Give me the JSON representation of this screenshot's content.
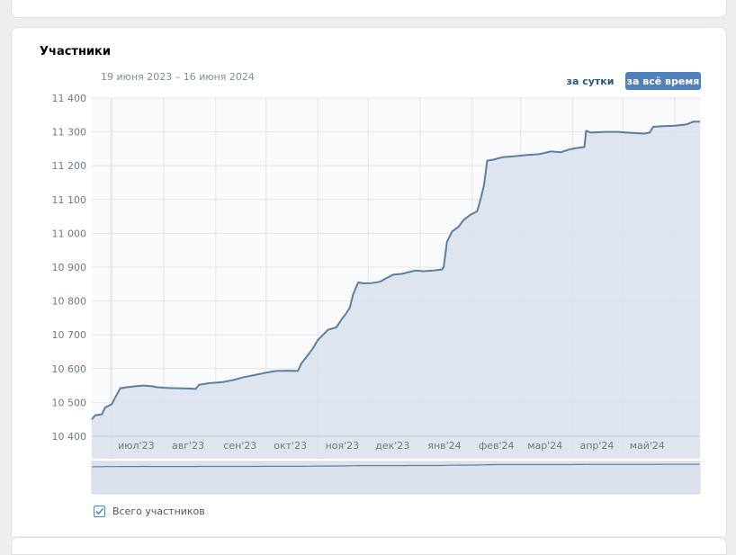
{
  "panel": {
    "title": "Участники",
    "date_range": "19 июня 2023 – 16 июня 2024",
    "period_buttons": {
      "day": "за сутки",
      "all_time": "за всё время",
      "active": "all_time"
    },
    "legend_label": "Всего участников",
    "legend_checked": true
  },
  "colors": {
    "line": "#5b7fa3",
    "area": "#dce2ec",
    "grid": "#e2e6eb",
    "axis_text": "#6d7885",
    "button_active": "#5181b8",
    "link": "#2a5885"
  },
  "chart_data": {
    "type": "area",
    "series": [
      {
        "name": "Всего участников",
        "points": [
          [
            "2023-06-19",
            10450
          ],
          [
            "2023-06-21",
            10462
          ],
          [
            "2023-06-25",
            10465
          ],
          [
            "2023-06-27",
            10485
          ],
          [
            "2023-07-01",
            10495
          ],
          [
            "2023-07-03",
            10515
          ],
          [
            "2023-07-06",
            10542
          ],
          [
            "2023-07-10",
            10545
          ],
          [
            "2023-07-15",
            10548
          ],
          [
            "2023-07-20",
            10550
          ],
          [
            "2023-07-25",
            10548
          ],
          [
            "2023-07-28",
            10545
          ],
          [
            "2023-08-03",
            10543
          ],
          [
            "2023-08-10",
            10542
          ],
          [
            "2023-08-17",
            10541
          ],
          [
            "2023-08-20",
            10540
          ],
          [
            "2023-08-22",
            10552
          ],
          [
            "2023-08-28",
            10557
          ],
          [
            "2023-09-05",
            10560
          ],
          [
            "2023-09-12",
            10567
          ],
          [
            "2023-09-18",
            10575
          ],
          [
            "2023-09-25",
            10582
          ],
          [
            "2023-10-01",
            10588
          ],
          [
            "2023-10-07",
            10593
          ],
          [
            "2023-10-15",
            10594
          ],
          [
            "2023-10-20",
            10593
          ],
          [
            "2023-10-22",
            10615
          ],
          [
            "2023-10-26",
            10640
          ],
          [
            "2023-10-29",
            10660
          ],
          [
            "2023-11-01",
            10685
          ],
          [
            "2023-11-04",
            10700
          ],
          [
            "2023-11-07",
            10715
          ],
          [
            "2023-11-12",
            10722
          ],
          [
            "2023-11-15",
            10745
          ],
          [
            "2023-11-18",
            10765
          ],
          [
            "2023-11-20",
            10780
          ],
          [
            "2023-11-22",
            10820
          ],
          [
            "2023-11-25",
            10855
          ],
          [
            "2023-11-28",
            10852
          ],
          [
            "2023-12-03",
            10853
          ],
          [
            "2023-12-08",
            10857
          ],
          [
            "2023-12-12",
            10868
          ],
          [
            "2023-12-16",
            10878
          ],
          [
            "2023-12-21",
            10880
          ],
          [
            "2023-12-25",
            10885
          ],
          [
            "2023-12-29",
            10890
          ],
          [
            "2024-01-03",
            10888
          ],
          [
            "2024-01-09",
            10890
          ],
          [
            "2024-01-14",
            10893
          ],
          [
            "2024-01-15",
            10900
          ],
          [
            "2024-01-17",
            10975
          ],
          [
            "2024-01-20",
            11005
          ],
          [
            "2024-01-24",
            11020
          ],
          [
            "2024-01-27",
            11040
          ],
          [
            "2024-01-31",
            11055
          ],
          [
            "2024-02-04",
            11065
          ],
          [
            "2024-02-06",
            11100
          ],
          [
            "2024-02-08",
            11140
          ],
          [
            "2024-02-10",
            11215
          ],
          [
            "2024-02-14",
            11218
          ],
          [
            "2024-02-19",
            11225
          ],
          [
            "2024-02-26",
            11228
          ],
          [
            "2024-03-05",
            11232
          ],
          [
            "2024-03-12",
            11234
          ],
          [
            "2024-03-19",
            11242
          ],
          [
            "2024-03-25",
            11240
          ],
          [
            "2024-03-30",
            11248
          ],
          [
            "2024-04-03",
            11252
          ],
          [
            "2024-04-08",
            11255
          ],
          [
            "2024-04-09",
            11303
          ],
          [
            "2024-04-12",
            11298
          ],
          [
            "2024-04-20",
            11300
          ],
          [
            "2024-04-28",
            11300
          ],
          [
            "2024-05-06",
            11297
          ],
          [
            "2024-05-14",
            11295
          ],
          [
            "2024-05-17",
            11298
          ],
          [
            "2024-05-19",
            11315
          ],
          [
            "2024-05-25",
            11317
          ],
          [
            "2024-06-01",
            11318
          ],
          [
            "2024-06-08",
            11322
          ],
          [
            "2024-06-12",
            11330
          ],
          [
            "2024-06-16",
            11330
          ]
        ]
      }
    ],
    "x_range": [
      "2023-06-19",
      "2024-06-16"
    ],
    "ylim": [
      10400,
      11400
    ],
    "y_ticks": [
      10400,
      10500,
      10600,
      10700,
      10800,
      10900,
      11000,
      11100,
      11200,
      11300,
      11400
    ],
    "y_tick_labels": [
      "10 400",
      "10 500",
      "10 600",
      "10 700",
      "10 800",
      "10 900",
      "11 000",
      "11 100",
      "11 200",
      "11 300",
      "11 400"
    ],
    "x_ticks": [
      "2023-07-01",
      "2023-08-01",
      "2023-09-01",
      "2023-10-01",
      "2023-11-01",
      "2023-12-01",
      "2024-01-01",
      "2024-02-01",
      "2024-03-01",
      "2024-04-01",
      "2024-05-01",
      "2024-06-01"
    ],
    "x_tick_labels": [
      "июл'23",
      "авг'23",
      "сен'23",
      "окт'23",
      "ноя'23",
      "дек'23",
      "янв'24",
      "фев'24",
      "мар'24",
      "апр'24",
      "май'24",
      ""
    ],
    "grid": true,
    "has_navigator": true
  }
}
